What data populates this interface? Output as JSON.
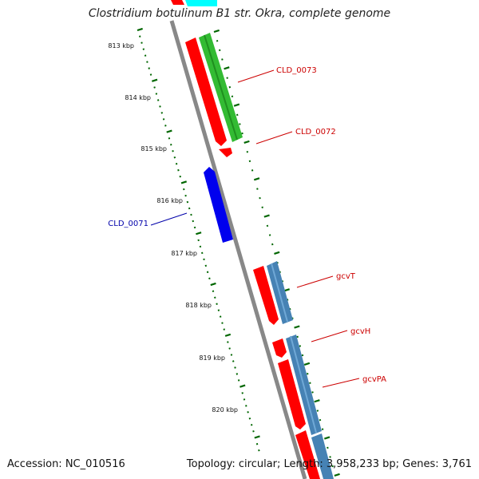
{
  "title": "Clostridium botulinum B1 str. Okra, complete genome",
  "footer": {
    "accession": "Accession: NC_010516",
    "summary": "Topology: circular; Length: 3,958,233 bp; Genes: 3,761"
  },
  "scale": {
    "unit": "kbp",
    "tick_labels": [
      "813 kbp",
      "814 kbp",
      "815 kbp",
      "816 kbp",
      "817 kbp",
      "818 kbp",
      "819 kbp",
      "820 kbp"
    ]
  },
  "genes": [
    {
      "label": "CLD_0073",
      "color": "#cc0000"
    },
    {
      "label": "CLD_0072",
      "color": "#cc0000"
    },
    {
      "label": "CLD_0071",
      "color": "#0000aa"
    },
    {
      "label": "gcvT",
      "color": "#cc0000"
    },
    {
      "label": "gcvH",
      "color": "#cc0000"
    },
    {
      "label": "gcvPA",
      "color": "#cc0000"
    }
  ],
  "colors": {
    "backbone": "#888888",
    "cds_forward": "#ff0000",
    "cds_reverse": "#0000ff",
    "feature_green": "#33bb33",
    "feature_steelblue": "#4682b4",
    "feature_cyan": "#00ffff",
    "tick_green": "#006600"
  }
}
